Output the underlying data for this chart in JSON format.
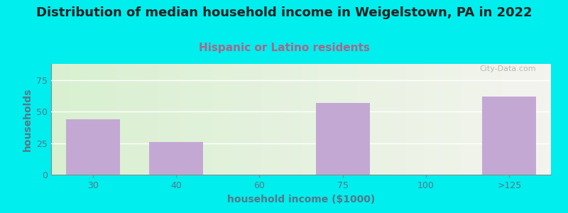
{
  "title": "Distribution of median household income in Weigelstown, PA in 2022",
  "subtitle": "Hispanic or Latino residents",
  "xlabel": "household income ($1000)",
  "ylabel": "households",
  "categories": [
    "30",
    "40",
    "60",
    "75",
    "100",
    ">125"
  ],
  "values": [
    44,
    26,
    0,
    57,
    0,
    62
  ],
  "bar_color": "#c4a8d4",
  "background_color": "#00EEEE",
  "plot_bg_gradient_left": "#dff0d0",
  "plot_bg_gradient_right": "#f4f4ee",
  "title_fontsize": 13,
  "subtitle_fontsize": 11,
  "title_color": "#222222",
  "subtitle_color": "#aa6688",
  "ylabel_color": "#557788",
  "xlabel_color": "#557788",
  "tick_color": "#557788",
  "ylim": [
    0,
    88
  ],
  "yticks": [
    0,
    25,
    50,
    75
  ],
  "watermark": "City-Data.com"
}
